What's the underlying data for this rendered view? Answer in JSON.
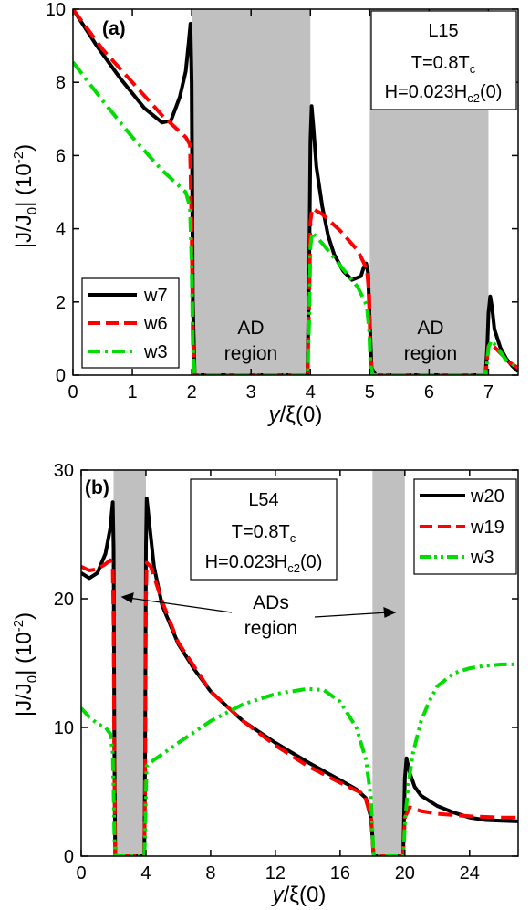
{
  "chart_data": [
    {
      "type": "line",
      "panel_label": "(a)",
      "xlabel": "y/ξ(0)",
      "ylabel": "|J/J0| (10-2)",
      "xlim": [
        0,
        7.5
      ],
      "ylim": [
        0,
        10
      ],
      "x_ticks": [
        0,
        1,
        2,
        3,
        4,
        5,
        6,
        7
      ],
      "y_ticks": [
        0,
        2,
        4,
        6,
        8,
        10
      ],
      "info_box": [
        "L15",
        "T=0.8T",
        "c",
        "H=0.023H",
        "c2",
        "(0)"
      ],
      "legend_position": "bottom-left",
      "shaded_regions": [
        [
          2,
          4
        ],
        [
          5,
          7
        ]
      ],
      "region_labels": [
        {
          "line1": "AD",
          "line2": "region",
          "x": 3.0
        },
        {
          "line1": "AD",
          "line2": "region",
          "x": 6.0
        }
      ],
      "series": [
        {
          "name": "w7",
          "color": "#000000",
          "dash": "solid",
          "x": [
            0,
            0.4,
            0.8,
            1.2,
            1.5,
            1.65,
            1.8,
            1.9,
            1.95,
            1.98,
            2.0,
            2.02,
            2.05,
            3.95,
            3.98,
            4.0,
            4.02,
            4.05,
            4.1,
            4.2,
            4.3,
            4.4,
            4.55,
            4.7,
            4.85,
            4.9,
            4.94,
            4.97,
            5.0,
            5.03,
            5.1,
            6.95,
            6.98,
            7.0,
            7.03,
            7.06,
            7.1,
            7.2,
            7.3,
            7.4,
            7.5
          ],
          "y": [
            10.0,
            9.0,
            8.1,
            7.3,
            6.9,
            6.95,
            7.6,
            8.3,
            9.1,
            9.6,
            8.0,
            2.0,
            0,
            0,
            3.0,
            6.4,
            7.35,
            6.8,
            5.7,
            4.6,
            3.8,
            3.3,
            2.85,
            2.6,
            2.7,
            2.95,
            3.05,
            2.8,
            1.5,
            0.2,
            0,
            0,
            0.8,
            1.7,
            2.15,
            1.85,
            1.25,
            0.75,
            0.45,
            0.25,
            0.1
          ]
        },
        {
          "name": "w6",
          "color": "#ff0000",
          "dash": "dashed",
          "x": [
            0,
            0.5,
            1.0,
            1.5,
            1.9,
            1.97,
            2.0,
            2.02,
            2.05,
            3.95,
            3.98,
            4.0,
            4.03,
            4.2,
            4.5,
            4.8,
            4.95,
            4.99,
            5.01,
            5.05,
            6.95,
            6.98,
            7.0,
            7.05,
            7.2,
            7.35,
            7.5
          ],
          "y": [
            10.0,
            8.9,
            8.0,
            7.1,
            6.5,
            6.3,
            4.0,
            1.0,
            0,
            0,
            2.0,
            4.2,
            4.55,
            4.4,
            3.95,
            3.4,
            2.9,
            2.2,
            0.5,
            0,
            0,
            0.5,
            0.8,
            0.85,
            0.6,
            0.35,
            0.2
          ]
        },
        {
          "name": "w3",
          "color": "#00dd00",
          "dash": "dashdot",
          "x": [
            0,
            0.5,
            1.0,
            1.5,
            1.9,
            1.97,
            2.0,
            2.02,
            2.05,
            3.95,
            3.98,
            4.0,
            4.03,
            4.2,
            4.5,
            4.8,
            4.95,
            4.99,
            5.01,
            5.05,
            6.95,
            6.98,
            7.0,
            7.05,
            7.15,
            7.3,
            7.5
          ],
          "y": [
            8.55,
            7.5,
            6.5,
            5.6,
            5.0,
            4.6,
            3.0,
            0.8,
            0,
            0,
            1.5,
            3.5,
            3.9,
            3.6,
            3.0,
            2.4,
            1.9,
            1.2,
            0.3,
            0,
            0,
            0.4,
            0.75,
            0.95,
            0.75,
            0.4,
            0.2
          ]
        }
      ]
    },
    {
      "type": "line",
      "panel_label": "(b)",
      "xlabel": "y/ξ(0)",
      "ylabel": "|J/J0| (10-2)",
      "xlim": [
        0,
        27
      ],
      "ylim": [
        0,
        30
      ],
      "x_ticks": [
        0,
        4,
        8,
        12,
        16,
        20,
        24
      ],
      "y_ticks": [
        0,
        10,
        20,
        30
      ],
      "info_box": [
        "L54",
        "T=0.8T",
        "c",
        "H=0.023H",
        "c2",
        "(0)"
      ],
      "legend_position": "top-right",
      "shaded_regions": [
        [
          2,
          4
        ],
        [
          18,
          20
        ]
      ],
      "region_labels": [
        {
          "line1": "ADs",
          "line2": "region",
          "x": 11.0
        }
      ],
      "series": [
        {
          "name": "w20",
          "color": "#000000",
          "dash": "solid",
          "x": [
            0,
            0.5,
            1.0,
            1.5,
            1.8,
            1.95,
            2.0,
            2.05,
            2.1,
            3.9,
            3.95,
            4.0,
            4.05,
            4.2,
            4.5,
            5,
            6,
            7,
            8,
            10,
            12,
            14,
            16,
            17,
            17.6,
            17.9,
            18.0,
            18.05,
            18.1,
            19.9,
            19.95,
            20.0,
            20.1,
            20.3,
            20.6,
            21,
            22,
            23,
            24,
            25,
            26,
            27
          ],
          "y": [
            22.0,
            21.6,
            22.0,
            23.5,
            25.5,
            27.5,
            24.0,
            8.0,
            0,
            0,
            8.0,
            24.0,
            27.8,
            26.0,
            22.5,
            19.5,
            16.5,
            14.5,
            12.8,
            10.5,
            8.8,
            7.3,
            5.9,
            5.2,
            4.5,
            3.0,
            1.5,
            0.3,
            0,
            0,
            3.0,
            6.0,
            7.6,
            6.5,
            5.4,
            4.7,
            3.9,
            3.4,
            3.0,
            2.8,
            2.75,
            2.7
          ]
        },
        {
          "name": "w19",
          "color": "#ff0000",
          "dash": "dashed",
          "x": [
            0,
            0.5,
            1.0,
            1.5,
            1.8,
            1.95,
            2.0,
            2.05,
            2.1,
            3.9,
            3.95,
            4.0,
            4.05,
            4.3,
            5,
            6,
            8,
            10,
            12,
            14,
            16,
            17.5,
            17.9,
            18.0,
            18.05,
            18.1,
            19.9,
            19.95,
            20.0,
            20.3,
            21,
            22,
            24,
            26,
            27
          ],
          "y": [
            22.5,
            22.2,
            22.3,
            22.7,
            23.0,
            22.5,
            18.0,
            6.0,
            0,
            0,
            6.0,
            20.0,
            22.8,
            22.5,
            19.8,
            16.6,
            12.8,
            10.5,
            8.6,
            7.0,
            5.7,
            4.8,
            3.0,
            1.5,
            0.3,
            0,
            0,
            1.5,
            3.0,
            3.8,
            3.5,
            3.3,
            3.1,
            3.0,
            3.0
          ]
        },
        {
          "name": "w3",
          "color": "#00dd00",
          "dash": "dashdotdot",
          "x": [
            0,
            0.5,
            1.0,
            1.5,
            1.8,
            1.95,
            2.0,
            2.05,
            2.1,
            3.9,
            3.95,
            4.0,
            4.05,
            4.3,
            6,
            8,
            10,
            12,
            14,
            15,
            16,
            17,
            17.6,
            17.9,
            18.0,
            18.05,
            18.1,
            19.9,
            19.95,
            20.0,
            20.2,
            20.5,
            21,
            21.5,
            22,
            23,
            24,
            25,
            26,
            27
          ],
          "y": [
            11.5,
            10.8,
            10.3,
            10.0,
            9.5,
            8.0,
            5.0,
            1.5,
            0,
            0,
            1.5,
            5.0,
            7.0,
            7.3,
            8.8,
            10.5,
            11.8,
            12.6,
            13.0,
            12.9,
            12.0,
            10.0,
            7.5,
            4.5,
            2.0,
            0.5,
            0,
            0,
            1.0,
            2.5,
            5.5,
            8.0,
            10.5,
            12.0,
            13.2,
            14.2,
            14.6,
            14.8,
            14.9,
            14.9
          ]
        }
      ]
    }
  ]
}
